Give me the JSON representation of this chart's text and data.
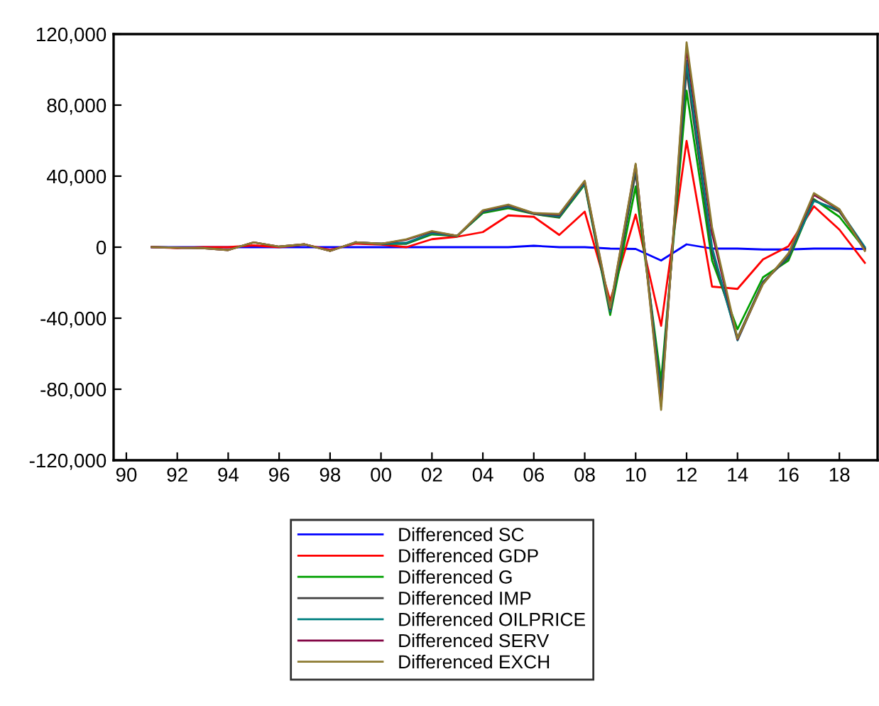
{
  "chart_data": {
    "type": "line",
    "x": [
      1991,
      1992,
      1993,
      1994,
      1995,
      1996,
      1997,
      1998,
      1999,
      2000,
      2001,
      2002,
      2003,
      2004,
      2005,
      2006,
      2007,
      2008,
      2009,
      2010,
      2011,
      2012,
      2013,
      2014,
      2015,
      2016,
      2017,
      2018,
      2019
    ],
    "series": [
      {
        "name": "Differenced SC",
        "color": "#0000ff",
        "values": [
          0,
          0,
          0,
          0,
          0,
          0,
          0,
          0,
          0,
          0,
          0,
          0,
          0,
          0,
          0,
          800,
          0,
          0,
          -800,
          -1000,
          -7500,
          1600,
          -800,
          -800,
          -1300,
          -1300,
          -800,
          -800,
          -1000
        ]
      },
      {
        "name": "Differenced GDP",
        "color": "#ff0000",
        "values": [
          0,
          -500,
          0,
          0,
          1000,
          0,
          1500,
          -1500,
          2000,
          1500,
          0,
          4500,
          5900,
          8500,
          17900,
          17100,
          6900,
          20000,
          -30200,
          18400,
          -44300,
          59800,
          -22200,
          -23500,
          -6900,
          500,
          23000,
          9900,
          -8800
        ]
      },
      {
        "name": "Differenced G",
        "color": "#00a000",
        "values": [
          null,
          null,
          null,
          null,
          null,
          null,
          null,
          null,
          null,
          1900,
          1900,
          7200,
          6400,
          19200,
          21900,
          18700,
          16600,
          35200,
          -38200,
          34200,
          -75400,
          88100,
          -7500,
          -46200,
          -17000,
          -7500,
          27000,
          17100,
          -1000
        ]
      },
      {
        "name": "Differenced IMP",
        "color": "#404040",
        "values": [
          0,
          -300,
          -500,
          -1600,
          2700,
          300,
          1600,
          -2100,
          2700,
          1900,
          2200,
          7800,
          6400,
          19800,
          22500,
          18800,
          17000,
          35800,
          -36500,
          42000,
          -82000,
          100000,
          -3000,
          -51000,
          -19500,
          -6000,
          26500,
          20000,
          -500
        ]
      },
      {
        "name": "Differenced OILPRICE",
        "color": "#008080",
        "values": [
          null,
          null,
          null,
          null,
          null,
          null,
          null,
          null,
          2700,
          1900,
          2500,
          8000,
          6400,
          20000,
          23000,
          19000,
          17500,
          36000,
          -36000,
          45000,
          -85000,
          105000,
          0,
          -52500,
          -20000,
          -5000,
          26000,
          21000,
          0
        ]
      },
      {
        "name": "Differenced SERV",
        "color": "#800040",
        "values": [
          0,
          -300,
          -500,
          -1600,
          2700,
          300,
          1600,
          -2100,
          2700,
          1900,
          4200,
          8800,
          6400,
          20500,
          23700,
          19100,
          18300,
          37000,
          -34800,
          46500,
          -89500,
          112000,
          8000,
          -52000,
          -20500,
          -4000,
          29500,
          21200,
          -1500
        ]
      },
      {
        "name": "Differenced EXCH",
        "color": "#8c7a30",
        "values": [
          0,
          -300,
          -500,
          -1600,
          2700,
          300,
          1600,
          -2100,
          2700,
          1900,
          4500,
          9100,
          6400,
          20800,
          24000,
          19200,
          18700,
          37400,
          -34200,
          47000,
          -91600,
          115300,
          11200,
          -51500,
          -20800,
          -3500,
          30400,
          21400,
          -2100
        ]
      }
    ],
    "xlim": [
      1989.5,
      2019.5
    ],
    "xticks": [
      {
        "value": 1990,
        "label": "90"
      },
      {
        "value": 1992,
        "label": "92"
      },
      {
        "value": 1994,
        "label": "94"
      },
      {
        "value": 1996,
        "label": "96"
      },
      {
        "value": 1998,
        "label": "98"
      },
      {
        "value": 2000,
        "label": "00"
      },
      {
        "value": 2002,
        "label": "02"
      },
      {
        "value": 2004,
        "label": "04"
      },
      {
        "value": 2006,
        "label": "06"
      },
      {
        "value": 2008,
        "label": "08"
      },
      {
        "value": 2010,
        "label": "10"
      },
      {
        "value": 2012,
        "label": "12"
      },
      {
        "value": 2014,
        "label": "14"
      },
      {
        "value": 2016,
        "label": "16"
      },
      {
        "value": 2018,
        "label": "18"
      }
    ],
    "ylim": [
      -120000,
      120000
    ],
    "yticks": [
      {
        "value": -120000,
        "label": "-120,000"
      },
      {
        "value": -80000,
        "label": "-80,000"
      },
      {
        "value": -40000,
        "label": "-40,000"
      },
      {
        "value": 0,
        "label": "0"
      },
      {
        "value": 40000,
        "label": "40,000"
      },
      {
        "value": 80000,
        "label": "80,000"
      },
      {
        "value": 120000,
        "label": "120,000"
      }
    ],
    "grid": false,
    "legend": "bottom",
    "marker": "none",
    "line_style": "solid"
  }
}
